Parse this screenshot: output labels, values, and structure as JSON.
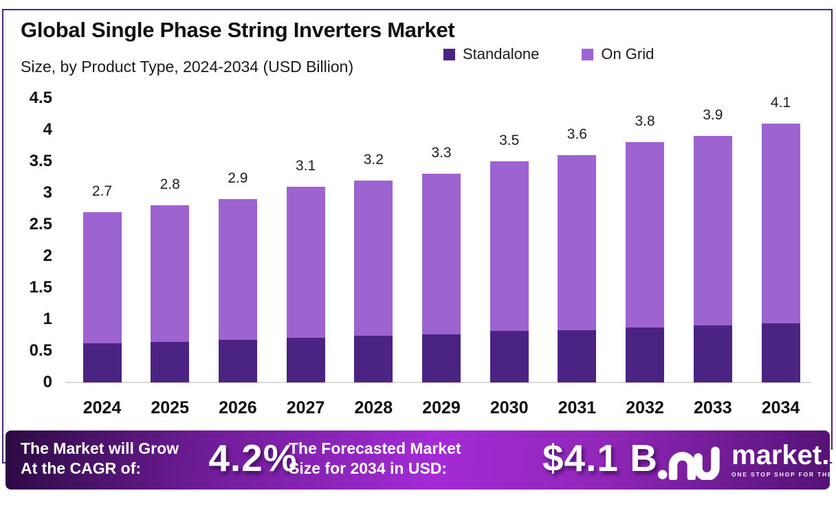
{
  "header": {
    "title": "Global Single Phase String Inverters Market",
    "subtitle": "Size, by Product Type, 2024-2034 (USD Billion)"
  },
  "legend": {
    "items": [
      {
        "label": "Standalone",
        "color": "#4b2383"
      },
      {
        "label": "On Grid",
        "color": "#9c63d1"
      }
    ]
  },
  "chart_data": {
    "type": "bar",
    "stacked": true,
    "title": "Global Single Phase String Inverters Market Size, by Product Type, 2024-2034 (USD Billion)",
    "categories": [
      "2024",
      "2025",
      "2026",
      "2027",
      "2028",
      "2029",
      "2030",
      "2031",
      "2032",
      "2033",
      "2034"
    ],
    "series": [
      {
        "name": "Standalone",
        "color": "#4b2383",
        "values": [
          0.62,
          0.64,
          0.67,
          0.71,
          0.74,
          0.76,
          0.81,
          0.83,
          0.87,
          0.9,
          0.94
        ]
      },
      {
        "name": "On Grid",
        "color": "#9c63d1",
        "values": [
          2.08,
          2.16,
          2.23,
          2.39,
          2.46,
          2.54,
          2.69,
          2.77,
          2.93,
          3.0,
          3.16
        ]
      }
    ],
    "totals": [
      2.7,
      2.8,
      2.9,
      3.1,
      3.2,
      3.3,
      3.5,
      3.6,
      3.8,
      3.9,
      4.1
    ],
    "total_labels": [
      "2.7",
      "2.8",
      "2.9",
      "3.1",
      "3.2",
      "3.3",
      "3.5",
      "3.6",
      "3.8",
      "3.9",
      "4.1"
    ],
    "xlabel": "",
    "ylabel": "",
    "ylim": [
      0,
      4.5
    ],
    "yticks": [
      0,
      0.5,
      1,
      1.5,
      2,
      2.5,
      3,
      3.5,
      4,
      4.5
    ],
    "ytick_labels": [
      "0",
      "0.5",
      "1",
      "1.5",
      "2",
      "2.5",
      "3",
      "3.5",
      "4",
      "4.5"
    ],
    "grid": false,
    "legend_position": "top-right"
  },
  "banner": {
    "left_line1": "The Market will Grow",
    "left_line2": "At the CAGR of:",
    "cagr_value": "4.2%",
    "right_line1": "The Forecasted Market",
    "right_line2": "Size for 2034 in USD:",
    "forecast_value": "$4.1 B",
    "brand": "market.us",
    "brand_tagline": "ONE STOP SHOP FOR THE REPORTS"
  },
  "colors": {
    "border": "#4a2581",
    "axis_line": "#d9d9d9",
    "standalone": "#4b2383",
    "on_grid": "#9c63d1",
    "banner_gradient": [
      "#2c0a42",
      "#a32bd5",
      "#541274"
    ]
  }
}
